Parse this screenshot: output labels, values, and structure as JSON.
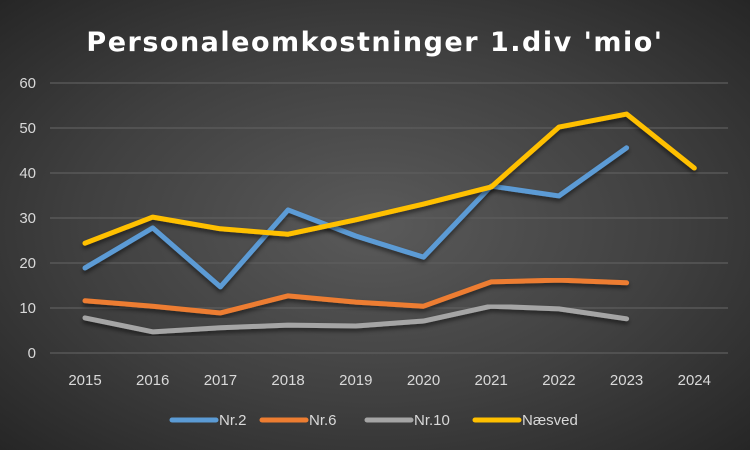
{
  "chart_data": {
    "type": "line",
    "title": "Personaleomkostninger 1.div 'mio'",
    "xlabel": "",
    "ylabel": "",
    "categories": [
      "2015",
      "2016",
      "2017",
      "2018",
      "2019",
      "2020",
      "2021",
      "2022",
      "2023",
      "2024"
    ],
    "ylim": [
      0,
      60
    ],
    "yticks": [
      "0",
      "10",
      "20",
      "30",
      "40",
      "50",
      "60"
    ],
    "grid": true,
    "legend": "bottom",
    "series": [
      {
        "name": "Nr.2",
        "color": "#5b9bd5",
        "values": [
          18.9,
          27.8,
          14.7,
          31.8,
          26.0,
          21.3,
          37.1,
          34.9,
          45.6,
          null
        ]
      },
      {
        "name": "Nr.6",
        "color": "#ed7d31",
        "values": [
          11.6,
          10.4,
          8.9,
          12.7,
          11.3,
          10.4,
          15.8,
          16.2,
          15.6,
          null
        ]
      },
      {
        "name": "Nr.10",
        "color": "#a5a5a5",
        "values": [
          7.8,
          4.7,
          5.6,
          6.2,
          6.0,
          7.1,
          10.4,
          9.8,
          7.6,
          null
        ]
      },
      {
        "name": "Næsved",
        "color": "#ffc000",
        "values": [
          24.4,
          30.2,
          27.6,
          26.4,
          29.6,
          33.1,
          36.9,
          50.2,
          53.1,
          41.1
        ]
      }
    ]
  }
}
